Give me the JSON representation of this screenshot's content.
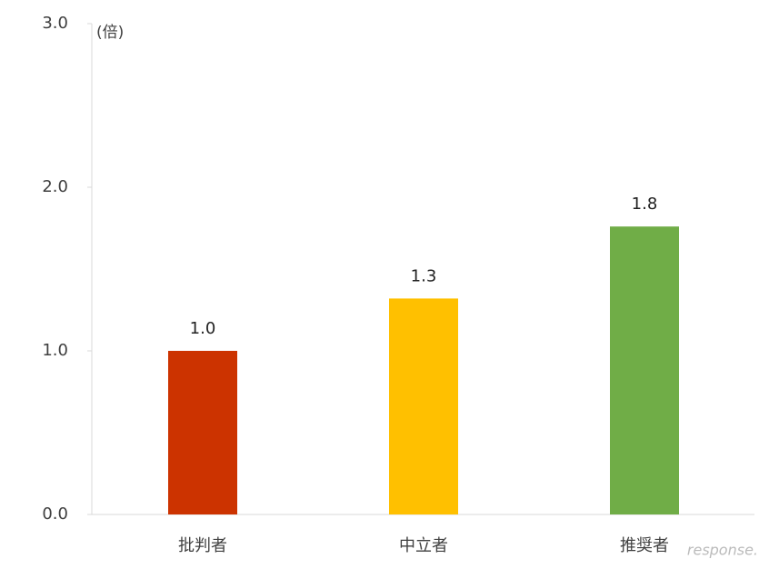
{
  "chart_data": {
    "type": "bar",
    "y_label": "(倍)",
    "categories": [
      "批判者",
      "中立者",
      "推奨者"
    ],
    "values": [
      1.0,
      1.32,
      1.76
    ],
    "value_labels": [
      "1.0",
      "1.3",
      "1.8"
    ],
    "colors": [
      "#cc3300",
      "#ffc000",
      "#70ad47"
    ],
    "ylim": [
      0,
      3
    ],
    "yticks": [
      {
        "value": 0,
        "label": "0.0"
      },
      {
        "value": 1,
        "label": "1.0"
      },
      {
        "value": 2,
        "label": "2.0"
      },
      {
        "value": 3,
        "label": "3.0"
      }
    ],
    "grid": false,
    "watermark": "response."
  }
}
